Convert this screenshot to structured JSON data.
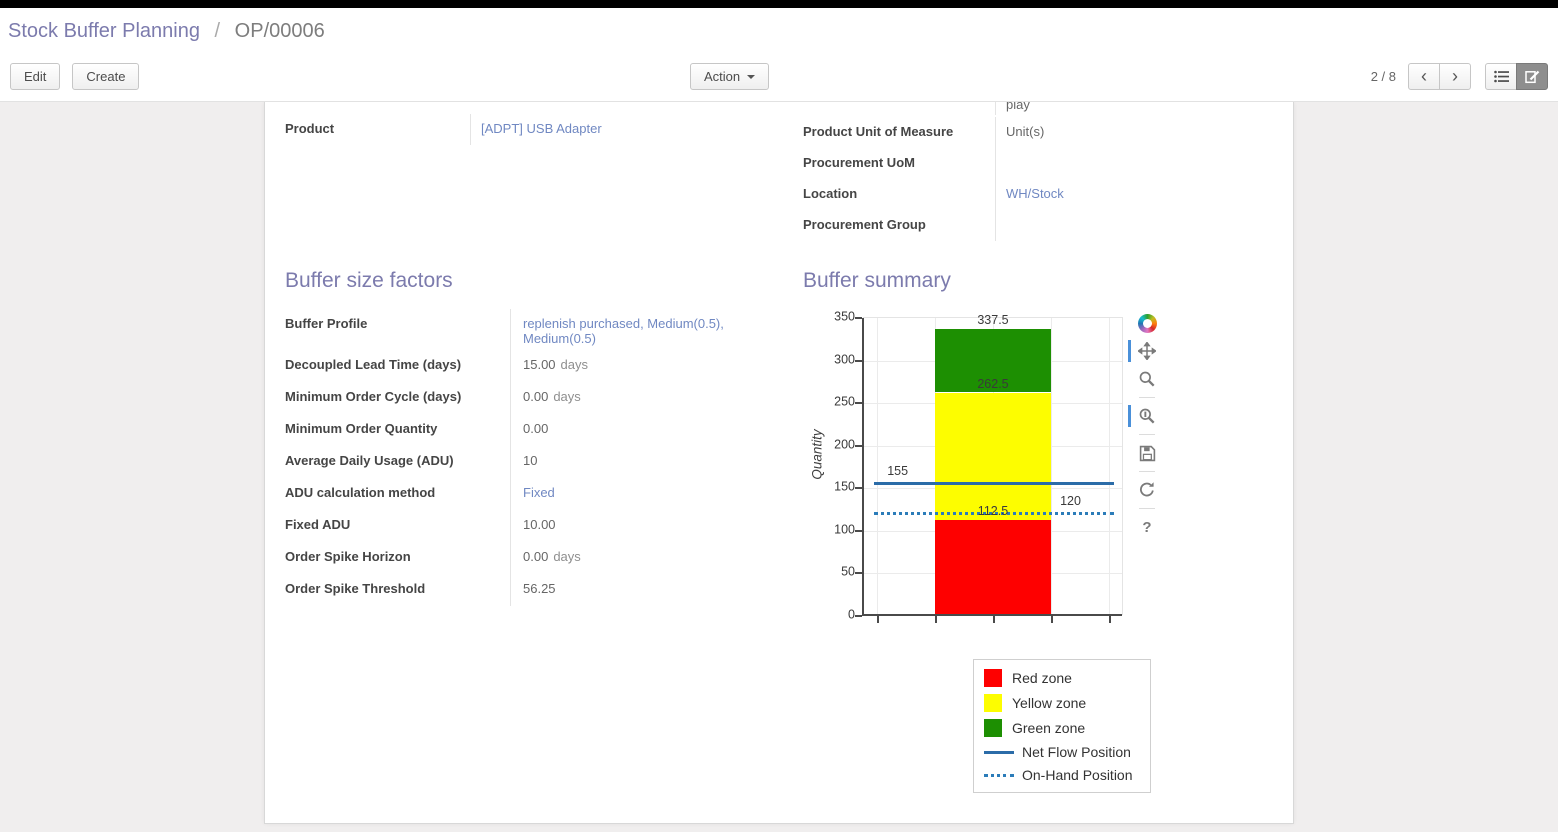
{
  "breadcrumb": {
    "parent": "Stock Buffer Planning",
    "separator": "/",
    "current": "OP/00006"
  },
  "controls": {
    "edit": "Edit",
    "create": "Create",
    "action": "Action",
    "pager": "2 / 8"
  },
  "theme": {
    "accent": "#7c7bad",
    "link": "#7088c2"
  },
  "form": {
    "clipped_value": "play",
    "left_fields": [
      {
        "label": "Product",
        "value": "[ADPT] USB Adapter",
        "link": true
      }
    ],
    "right_fields": [
      {
        "label": "Product Unit of Measure",
        "value": "Unit(s)"
      },
      {
        "label": "Procurement UoM",
        "value": ""
      },
      {
        "label": "Location",
        "value": "WH/Stock",
        "link": true
      },
      {
        "label": "Procurement Group",
        "value": ""
      }
    ],
    "sections": {
      "factors_title": "Buffer size factors",
      "summary_title": "Buffer summary"
    },
    "factor_fields": [
      {
        "label": "Buffer Profile",
        "value": "replenish purchased, Medium(0.5), Medium(0.5)",
        "link": true
      },
      {
        "label": "Decoupled Lead Time (days)",
        "value": "15.00",
        "unit": "days"
      },
      {
        "label": "Minimum Order Cycle (days)",
        "value": "0.00",
        "unit": "days"
      },
      {
        "label": "Minimum Order Quantity",
        "value": "0.00"
      },
      {
        "label": "Average Daily Usage (ADU)",
        "value": "10"
      },
      {
        "label": "ADU calculation method",
        "value": "Fixed",
        "link": true
      },
      {
        "label": "Fixed ADU",
        "value": "10.00"
      },
      {
        "label": "Order Spike Horizon",
        "value": "0.00",
        "unit": "days"
      },
      {
        "label": "Order Spike Threshold",
        "value": "56.25"
      }
    ]
  },
  "chart_data": {
    "type": "bar",
    "title": "Buffer summary",
    "ylabel": "Quantity",
    "ylim": [
      0,
      350
    ],
    "yticks": [
      0,
      50,
      100,
      150,
      200,
      250,
      300,
      350
    ],
    "zones": [
      {
        "name": "Red zone",
        "from": 0,
        "to": 112.5,
        "label": "112.5",
        "color": "#fe0000"
      },
      {
        "name": "Yellow zone",
        "from": 112.5,
        "to": 262.5,
        "label": "262.5",
        "color": "#fdfd00"
      },
      {
        "name": "Green zone",
        "from": 262.5,
        "to": 337.5,
        "label": "337.5",
        "color": "#1d8f02"
      }
    ],
    "lines": [
      {
        "name": "Net Flow Position",
        "value": 155,
        "label": "155",
        "style": "solid",
        "color": "#2b6ca8"
      },
      {
        "name": "On-Hand Position",
        "value": 120,
        "label": "120",
        "style": "dotted",
        "color": "#2b7cb9"
      }
    ],
    "legend": [
      "Red zone",
      "Yellow zone",
      "Green zone",
      "Net Flow Position",
      "On-Hand Position"
    ],
    "grid": true,
    "legend_position": "bottom-right"
  }
}
